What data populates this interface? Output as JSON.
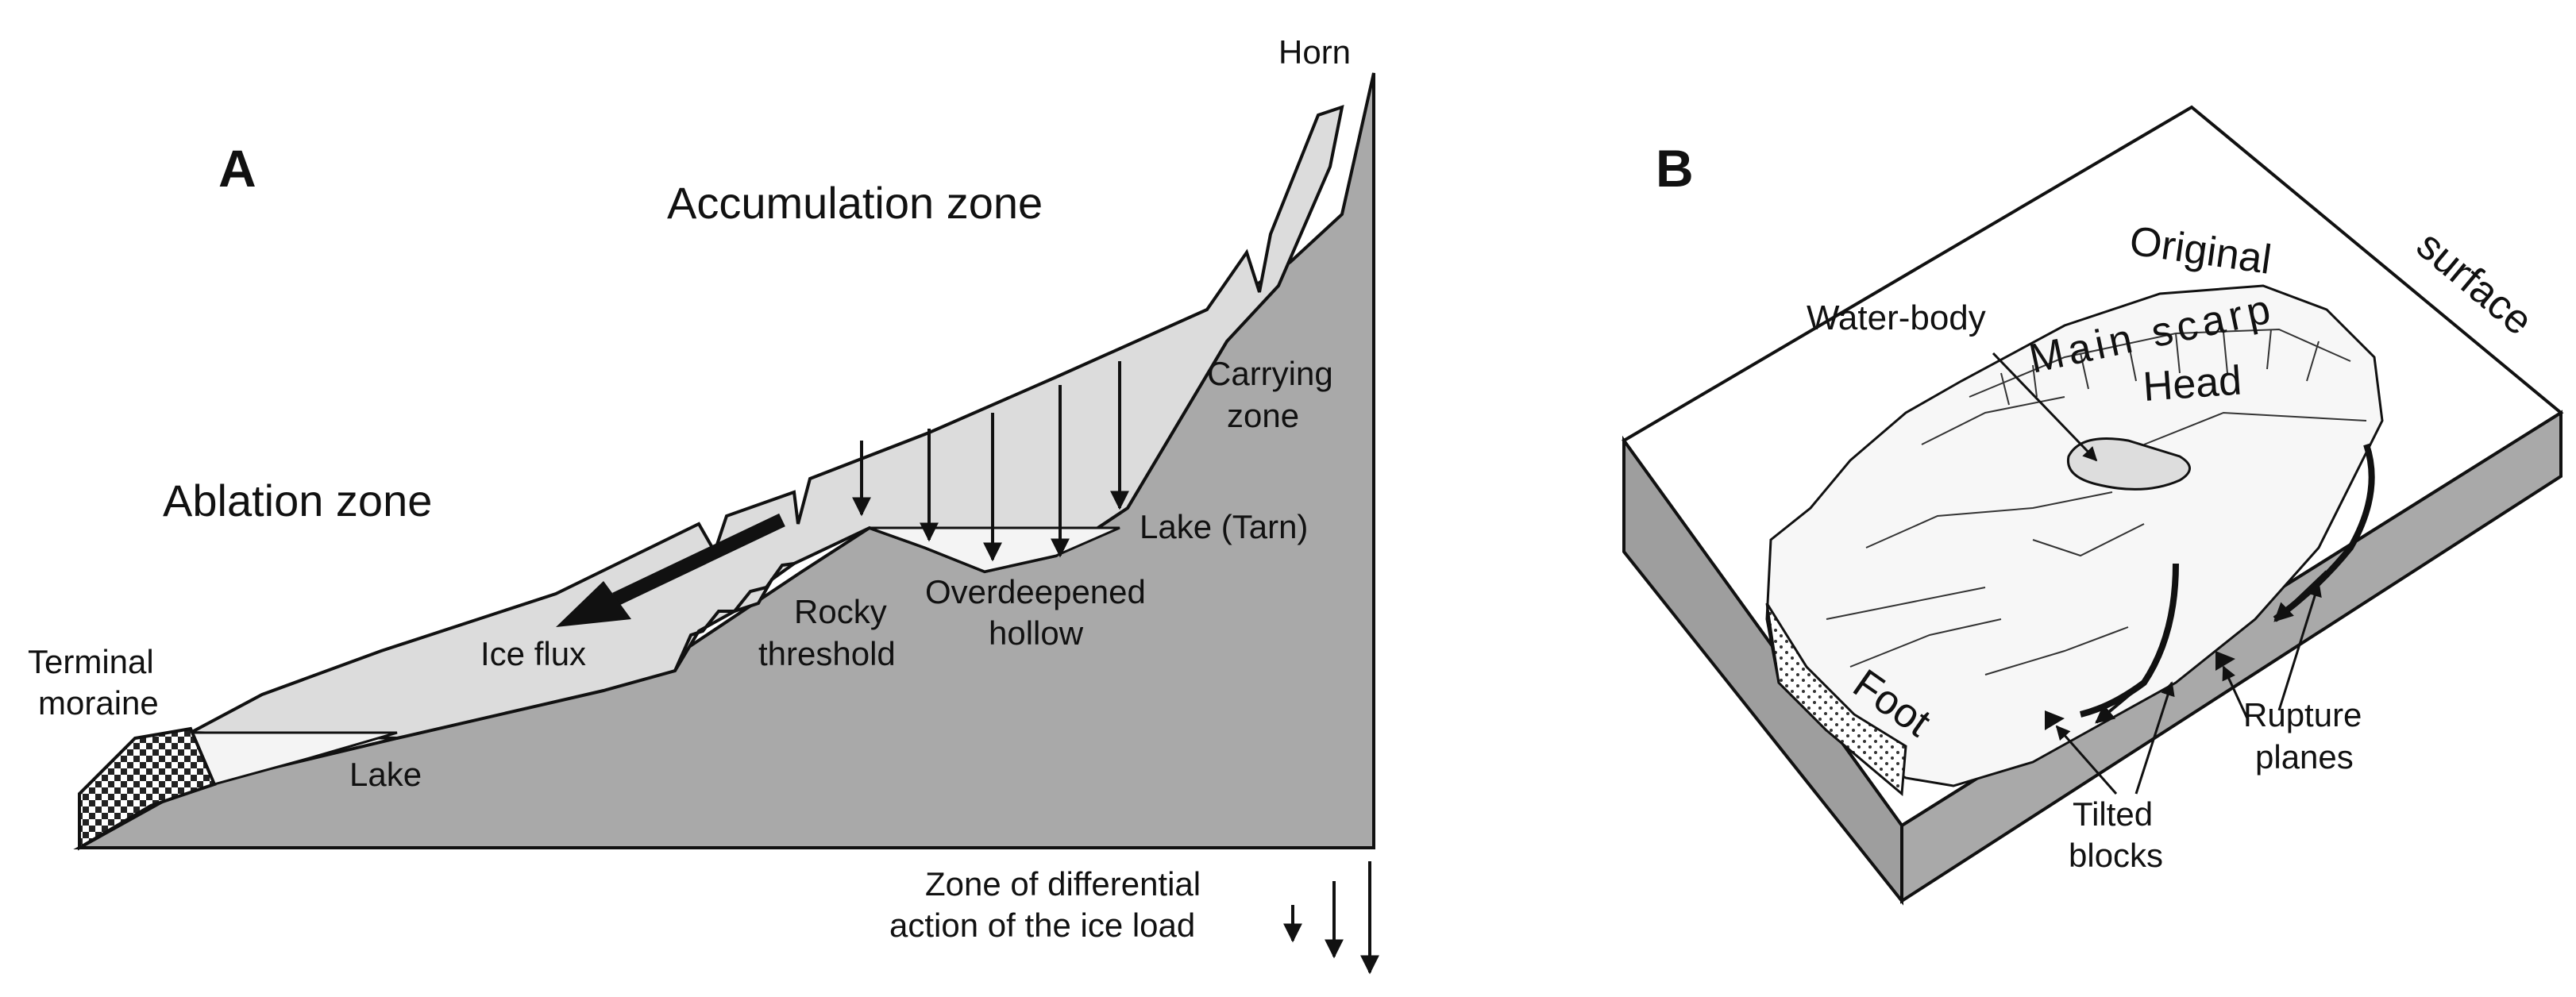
{
  "panel_a": {
    "letter": "A",
    "labels": {
      "horn": "Horn",
      "accumulation_zone": "Accumulation zone",
      "carrying_zone_line1": "Carrying",
      "carrying_zone_line2": "zone",
      "ablation_zone": "Ablation zone",
      "lake_tarn": "Lake (Tarn)",
      "overdeepened_line1": "Overdeepened",
      "overdeepened_line2": "hollow",
      "rocky_line1": "Rocky",
      "rocky_line2": "threshold",
      "ice_flux": "Ice flux",
      "terminal_line1": "Terminal",
      "terminal_line2": "moraine",
      "lake": "Lake",
      "legend_line1": "Zone of differential",
      "legend_line2": "action of the ice load"
    }
  },
  "panel_b": {
    "letter": "B",
    "labels": {
      "original": "Original",
      "surface": "surface",
      "water_body": "Water-body",
      "main_scarp": "Main scarp",
      "head": "Head",
      "foot": "Foot",
      "rupture_line1": "Rupture",
      "rupture_line2": "planes",
      "tilted_line1": "Tilted",
      "tilted_line2": "blocks"
    }
  },
  "colors": {
    "bedrock": "#a9a9a9",
    "ice": "#dcdcdc",
    "lake": "#f2f2f2",
    "outline": "#111111",
    "block_top": "#ffffff",
    "block_side": "#9e9e9e"
  }
}
